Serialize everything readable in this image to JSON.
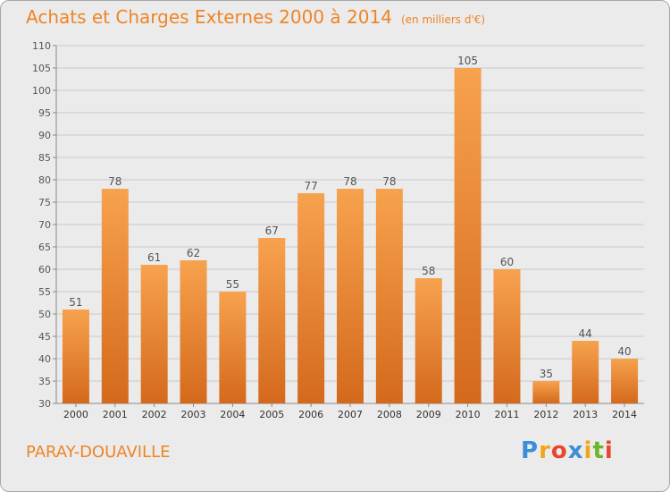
{
  "chart_data": {
    "type": "bar",
    "title": "Achats et Charges Externes 2000 à 2014",
    "unit": "(en milliers d'€)",
    "categories": [
      "2000",
      "2001",
      "2002",
      "2003",
      "2004",
      "2005",
      "2006",
      "2007",
      "2008",
      "2009",
      "2010",
      "2011",
      "2012",
      "2013",
      "2014"
    ],
    "values": [
      51,
      78,
      61,
      62,
      55,
      67,
      77,
      78,
      78,
      58,
      105,
      60,
      35,
      44,
      40
    ],
    "ylim": [
      30,
      110
    ],
    "yticks": [
      30,
      35,
      40,
      45,
      50,
      55,
      60,
      65,
      70,
      75,
      80,
      85,
      90,
      95,
      100,
      105,
      110
    ],
    "grid": true,
    "bar_color_top": "#f7a24e",
    "bar_color_bottom": "#d4691c"
  },
  "commune": "PARAY-DOUAVILLE",
  "logo": {
    "letters": [
      "P",
      "r",
      "o",
      "x",
      "i",
      "t",
      "i"
    ],
    "colors": [
      "#3a8fd6",
      "#f2a51a",
      "#e8462e",
      "#3a8fd6",
      "#f2a51a",
      "#6cb52d",
      "#e8462e"
    ]
  },
  "colors": {
    "accent": "#ef8426",
    "background": "#ebebeb"
  }
}
